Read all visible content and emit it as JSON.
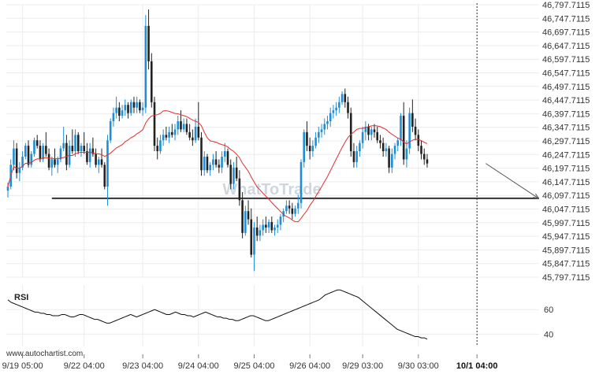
{
  "chart_data": {
    "type": "candlestick",
    "watermark": "WhatToTrade",
    "site": "www.autochartist.com",
    "colors": {
      "up": "#1f8ed6",
      "down": "#222222",
      "ma": "#e03030",
      "level": "#333333",
      "projection": "#555555",
      "rsi": "#111111",
      "grid": "#ececec"
    },
    "price_axis": {
      "ticks": [
        "46,797.7115",
        "46,747.7115",
        "46,697.7115",
        "46,647.7115",
        "46,597.7115",
        "46,547.7115",
        "46,497.7115",
        "46,447.7115",
        "46,397.7115",
        "46,347.7115",
        "46,297.7115",
        "46,247.7115",
        "46,197.7115",
        "46,147.7115",
        "46,097.7115",
        "46,047.7115",
        "45,997.7115",
        "45,947.7115",
        "45,897.7115",
        "45,847.7115",
        "45,797.7115"
      ],
      "ylim": [
        45797.7115,
        46797.7115
      ]
    },
    "x_axis": {
      "ticks": [
        {
          "label": "9/19 05:00",
          "index": 5
        },
        {
          "label": "9/22 04:00",
          "index": 26
        },
        {
          "label": "9/23 04:00",
          "index": 46
        },
        {
          "label": "9/24 04:00",
          "index": 65
        },
        {
          "label": "9/25 04:00",
          "index": 84
        },
        {
          "label": "9/26 04:00",
          "index": 103
        },
        {
          "label": "9/29 03:00",
          "index": 121
        },
        {
          "label": "9/30 03:00",
          "index": 140
        },
        {
          "label": "10/1 04:00",
          "index": 160,
          "bold": true
        }
      ],
      "count": 170
    },
    "support_level": {
      "value": 46087,
      "start_index": 15
    },
    "projection": {
      "from_index": 163,
      "from_value": 46215,
      "to_index": 181,
      "to_value": 46087
    },
    "current_time_index": 160,
    "candles_ohlc": [
      [
        46115,
        46145,
        46090,
        46130
      ],
      [
        46130,
        46230,
        46120,
        46210
      ],
      [
        46210,
        46300,
        46190,
        46270
      ],
      [
        46270,
        46290,
        46160,
        46180
      ],
      [
        46180,
        46220,
        46150,
        46200
      ],
      [
        46200,
        46260,
        46190,
        46240
      ],
      [
        46240,
        46290,
        46230,
        46280
      ],
      [
        46280,
        46300,
        46200,
        46210
      ],
      [
        46210,
        46260,
        46200,
        46250
      ],
      [
        46250,
        46310,
        46240,
        46300
      ],
      [
        46300,
        46320,
        46270,
        46280
      ],
      [
        46280,
        46300,
        46220,
        46230
      ],
      [
        46230,
        46290,
        46220,
        46280
      ],
      [
        46280,
        46330,
        46240,
        46250
      ],
      [
        46250,
        46270,
        46190,
        46200
      ],
      [
        46200,
        46240,
        46170,
        46230
      ],
      [
        46230,
        46270,
        46200,
        46210
      ],
      [
        46210,
        46240,
        46180,
        46230
      ],
      [
        46230,
        46280,
        46220,
        46270
      ],
      [
        46270,
        46350,
        46260,
        46290
      ],
      [
        46290,
        46320,
        46190,
        46210
      ],
      [
        46210,
        46300,
        46200,
        46280
      ],
      [
        46280,
        46340,
        46250,
        46260
      ],
      [
        46260,
        46340,
        46240,
        46320
      ],
      [
        46320,
        46330,
        46250,
        46260
      ],
      [
        46260,
        46290,
        46240,
        46280
      ],
      [
        46280,
        46330,
        46250,
        46260
      ],
      [
        46260,
        46290,
        46210,
        46220
      ],
      [
        46220,
        46290,
        46200,
        46270
      ],
      [
        46270,
        46310,
        46240,
        46250
      ],
      [
        46250,
        46270,
        46200,
        46210
      ],
      [
        46210,
        46240,
        46180,
        46230
      ],
      [
        46230,
        46270,
        46200,
        46210
      ],
      [
        46210,
        46220,
        46120,
        46130
      ],
      [
        46130,
        46320,
        46060,
        46300
      ],
      [
        46300,
        46380,
        46290,
        46370
      ],
      [
        46370,
        46420,
        46350,
        46400
      ],
      [
        46400,
        46460,
        46380,
        46420
      ],
      [
        46420,
        46440,
        46370,
        46390
      ],
      [
        46390,
        46430,
        46380,
        46410
      ],
      [
        46410,
        46450,
        46390,
        46430
      ],
      [
        46430,
        46440,
        46380,
        46400
      ],
      [
        46400,
        46450,
        46390,
        46440
      ],
      [
        46440,
        46460,
        46400,
        46420
      ],
      [
        46420,
        46460,
        46400,
        46440
      ],
      [
        46440,
        46450,
        46400,
        46410
      ],
      [
        46410,
        46440,
        46390,
        46420
      ],
      [
        46420,
        46760,
        46400,
        46720
      ],
      [
        46720,
        46780,
        46560,
        46590
      ],
      [
        46590,
        46620,
        46420,
        46440
      ],
      [
        46440,
        46460,
        46260,
        46280
      ],
      [
        46280,
        46310,
        46230,
        46260
      ],
      [
        46260,
        46320,
        46250,
        46300
      ],
      [
        46300,
        46340,
        46280,
        46320
      ],
      [
        46320,
        46350,
        46300,
        46310
      ],
      [
        46310,
        46350,
        46290,
        46330
      ],
      [
        46330,
        46360,
        46310,
        46320
      ],
      [
        46320,
        46360,
        46300,
        46340
      ],
      [
        46340,
        46390,
        46320,
        46370
      ],
      [
        46370,
        46410,
        46330,
        46340
      ],
      [
        46340,
        46380,
        46330,
        46360
      ],
      [
        46360,
        46380,
        46320,
        46330
      ],
      [
        46330,
        46360,
        46300,
        46310
      ],
      [
        46310,
        46340,
        46280,
        46300
      ],
      [
        46300,
        46380,
        46290,
        46350
      ],
      [
        46350,
        46440,
        46300,
        46310
      ],
      [
        46310,
        46330,
        46170,
        46190
      ],
      [
        46190,
        46260,
        46170,
        46240
      ],
      [
        46240,
        46250,
        46180,
        46190
      ],
      [
        46190,
        46220,
        46170,
        46210
      ],
      [
        46210,
        46250,
        46190,
        46230
      ],
      [
        46230,
        46260,
        46200,
        46210
      ],
      [
        46210,
        46230,
        46180,
        46200
      ],
      [
        46200,
        46260,
        46180,
        46240
      ],
      [
        46240,
        46290,
        46220,
        46260
      ],
      [
        46260,
        46270,
        46200,
        46210
      ],
      [
        46210,
        46230,
        46120,
        46140
      ],
      [
        46140,
        46220,
        46120,
        46200
      ],
      [
        46200,
        46240,
        46150,
        46160
      ],
      [
        46160,
        46190,
        46060,
        46080
      ],
      [
        46080,
        46110,
        45940,
        45960
      ],
      [
        45960,
        46060,
        45950,
        46040
      ],
      [
        46040,
        46080,
        45990,
        46010
      ],
      [
        46010,
        46050,
        45870,
        45880
      ],
      [
        45880,
        46000,
        45820,
        45980
      ],
      [
        45980,
        46020,
        45930,
        45950
      ],
      [
        45950,
        45990,
        45930,
        45970
      ],
      [
        45970,
        46010,
        45950,
        45990
      ],
      [
        45990,
        46020,
        45960,
        45980
      ],
      [
        45980,
        46010,
        45960,
        46000
      ],
      [
        46000,
        46020,
        45960,
        45970
      ],
      [
        45970,
        45990,
        45950,
        45980
      ],
      [
        45980,
        46010,
        45960,
        45990
      ],
      [
        45990,
        46030,
        45970,
        46020
      ],
      [
        46020,
        46050,
        46000,
        46040
      ],
      [
        46040,
        46080,
        46030,
        46060
      ],
      [
        46060,
        46080,
        46030,
        46050
      ],
      [
        46050,
        46070,
        46010,
        46030
      ],
      [
        46030,
        46060,
        46020,
        46050
      ],
      [
        46050,
        46100,
        46030,
        46070
      ],
      [
        46070,
        46230,
        46050,
        46220
      ],
      [
        46220,
        46340,
        46200,
        46330
      ],
      [
        46330,
        46370,
        46260,
        46280
      ],
      [
        46280,
        46310,
        46230,
        46260
      ],
      [
        46260,
        46300,
        46240,
        46280
      ],
      [
        46280,
        46330,
        46270,
        46310
      ],
      [
        46310,
        46350,
        46290,
        46330
      ],
      [
        46330,
        46360,
        46310,
        46340
      ],
      [
        46340,
        46380,
        46320,
        46360
      ],
      [
        46360,
        46390,
        46340,
        46370
      ],
      [
        46370,
        46420,
        46350,
        46400
      ],
      [
        46400,
        46430,
        46380,
        46410
      ],
      [
        46410,
        46440,
        46390,
        46420
      ],
      [
        46420,
        46460,
        46400,
        46440
      ],
      [
        46440,
        46480,
        46430,
        46470
      ],
      [
        46470,
        46490,
        46420,
        46440
      ],
      [
        46440,
        46460,
        46380,
        46400
      ],
      [
        46400,
        46420,
        46240,
        46260
      ],
      [
        46260,
        46290,
        46200,
        46220
      ],
      [
        46220,
        46280,
        46200,
        46260
      ],
      [
        46260,
        46300,
        46240,
        46290
      ],
      [
        46290,
        46350,
        46270,
        46330
      ],
      [
        46330,
        46370,
        46300,
        46350
      ],
      [
        46350,
        46360,
        46300,
        46320
      ],
      [
        46320,
        46350,
        46300,
        46340
      ],
      [
        46340,
        46360,
        46310,
        46330
      ],
      [
        46330,
        46350,
        46290,
        46300
      ],
      [
        46300,
        46320,
        46270,
        46290
      ],
      [
        46290,
        46310,
        46240,
        46260
      ],
      [
        46260,
        46290,
        46240,
        46270
      ],
      [
        46270,
        46280,
        46180,
        46200
      ],
      [
        46200,
        46270,
        46180,
        46250
      ],
      [
        46250,
        46290,
        46230,
        46280
      ],
      [
        46280,
        46310,
        46260,
        46300
      ],
      [
        46300,
        46400,
        46280,
        46390
      ],
      [
        46390,
        46440,
        46210,
        46230
      ],
      [
        46230,
        46300,
        46200,
        46270
      ],
      [
        46270,
        46420,
        46250,
        46400
      ],
      [
        46400,
        46450,
        46330,
        46350
      ],
      [
        46350,
        46380,
        46300,
        46320
      ],
      [
        46320,
        46340,
        46260,
        46280
      ],
      [
        46280,
        46300,
        46230,
        46250
      ],
      [
        46250,
        46270,
        46210,
        46230
      ],
      [
        46230,
        46250,
        46200,
        46215
      ]
    ],
    "rsi": {
      "label": "RSI",
      "ticks": [
        "60",
        "40"
      ],
      "ylim": [
        30,
        80
      ],
      "values": [
        68,
        66,
        65,
        64,
        63,
        62,
        61,
        60,
        59,
        58,
        58,
        57,
        57,
        56,
        56,
        55,
        55,
        55,
        56,
        56,
        55,
        54,
        54,
        55,
        56,
        56,
        55,
        54,
        53,
        52,
        52,
        51,
        50,
        49,
        49,
        50,
        51,
        52,
        53,
        54,
        55,
        56,
        55,
        54,
        55,
        56,
        57,
        58,
        59,
        60,
        59,
        58,
        57,
        56,
        56,
        57,
        58,
        57,
        56,
        56,
        55,
        55,
        54,
        55,
        56,
        57,
        58,
        57,
        56,
        55,
        54,
        54,
        53,
        53,
        52,
        52,
        51,
        51,
        52,
        53,
        54,
        55,
        55,
        54,
        53,
        52,
        51,
        51,
        52,
        53,
        54,
        55,
        56,
        57,
        58,
        59,
        60,
        61,
        62,
        63,
        64,
        65,
        66,
        67,
        68,
        70,
        72,
        73,
        74,
        75,
        76,
        76,
        75,
        74,
        73,
        72,
        71,
        70,
        68,
        66,
        64,
        62,
        60,
        58,
        56,
        54,
        52,
        50,
        48,
        46,
        44,
        43,
        42,
        41,
        40,
        39,
        38,
        38,
        37,
        37,
        36
      ]
    }
  }
}
